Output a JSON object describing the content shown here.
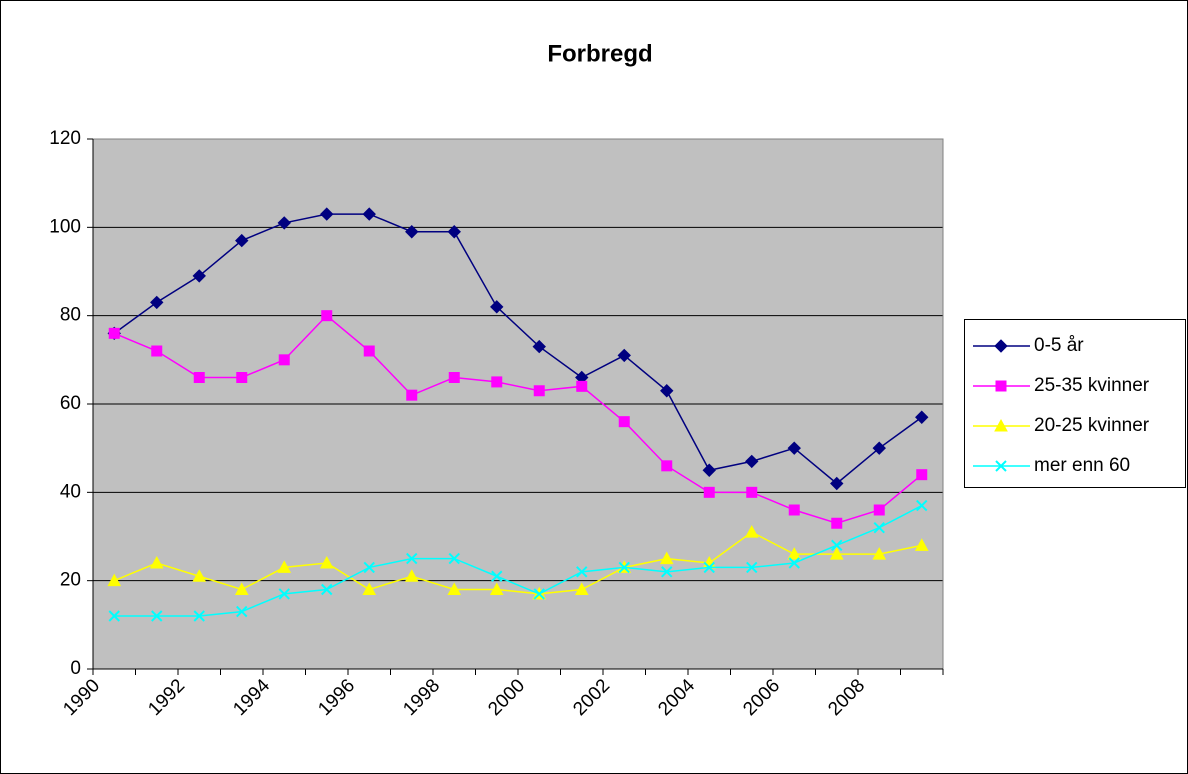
{
  "chart_data": {
    "type": "line",
    "title": "Forbregd",
    "categories": [
      "1990",
      null,
      "1992",
      null,
      "1994",
      null,
      "1996",
      null,
      "1998",
      null,
      "2000",
      null,
      "2002",
      null,
      "2004",
      null,
      "2006",
      null,
      "2008",
      null
    ],
    "series": [
      {
        "name": "0-5 år",
        "color": "#000080",
        "marker": "diamond",
        "values": [
          76,
          83,
          89,
          97,
          101,
          103,
          103,
          99,
          99,
          82,
          73,
          66,
          71,
          63,
          45,
          47,
          50,
          42,
          50,
          57
        ]
      },
      {
        "name": "25-35 kvinner",
        "color": "#ff00ff",
        "marker": "square",
        "values": [
          76,
          72,
          66,
          66,
          70,
          80,
          72,
          62,
          66,
          65,
          63,
          64,
          56,
          46,
          40,
          40,
          36,
          33,
          36,
          44
        ]
      },
      {
        "name": "20-25 kvinner",
        "color": "#ffff00",
        "marker": "triangle",
        "values": [
          20,
          24,
          21,
          18,
          23,
          24,
          18,
          21,
          18,
          18,
          17,
          18,
          23,
          25,
          24,
          31,
          26,
          26,
          26,
          28
        ]
      },
      {
        "name": "mer enn 60",
        "color": "#00ffff",
        "marker": "x",
        "values": [
          12,
          12,
          12,
          13,
          17,
          18,
          23,
          25,
          25,
          21,
          17,
          22,
          23,
          22,
          23,
          23,
          24,
          28,
          32,
          37
        ]
      }
    ],
    "ylim": [
      0,
      120
    ],
    "yticks": [
      0,
      20,
      40,
      60,
      80,
      100,
      120
    ],
    "grid": true,
    "legend": "right"
  }
}
